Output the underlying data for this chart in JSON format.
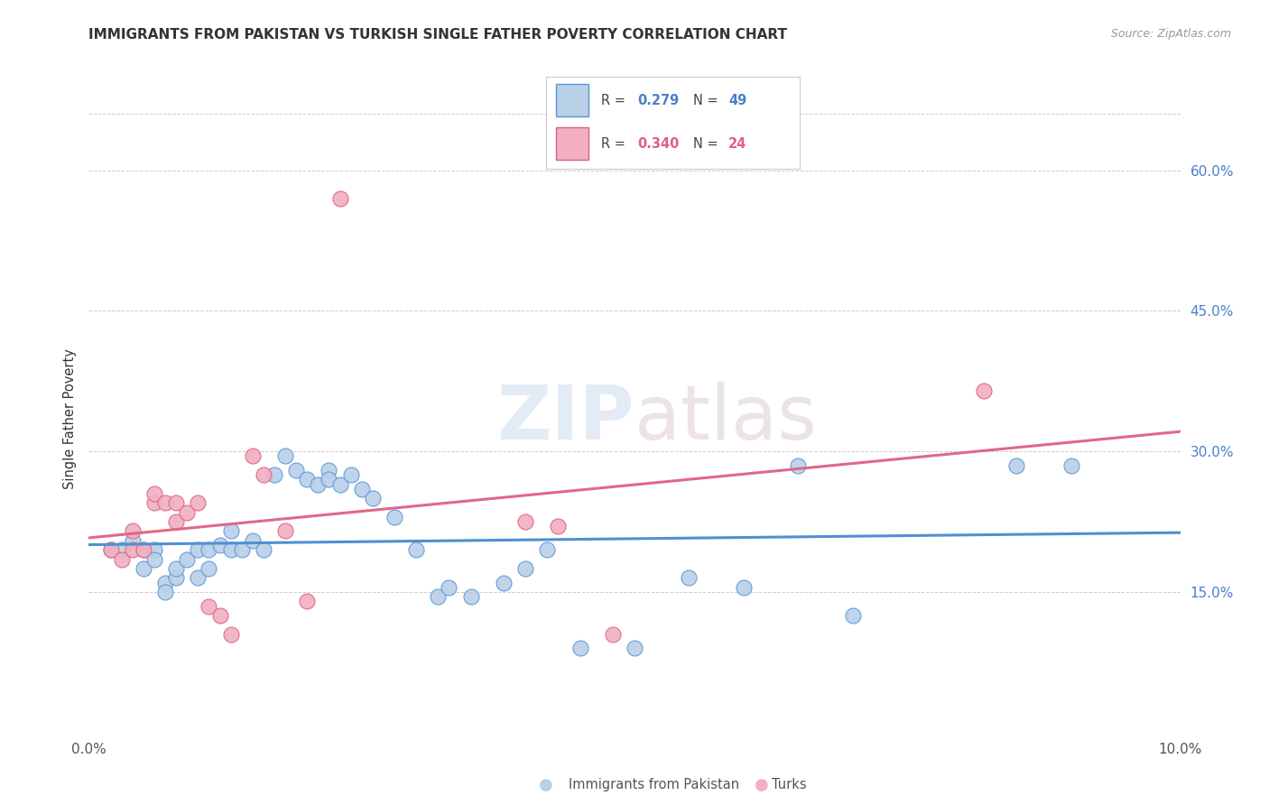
{
  "title": "IMMIGRANTS FROM PAKISTAN VS TURKISH SINGLE FATHER POVERTY CORRELATION CHART",
  "source": "Source: ZipAtlas.com",
  "ylabel": "Single Father Poverty",
  "ytick_labels": [
    "15.0%",
    "30.0%",
    "45.0%",
    "60.0%"
  ],
  "ytick_values": [
    0.15,
    0.3,
    0.45,
    0.6
  ],
  "xlim": [
    0.0,
    0.1
  ],
  "ylim": [
    0.0,
    0.67
  ],
  "legend_r1": "R = 0.279",
  "legend_n1": "N = 49",
  "legend_r2": "R = 0.340",
  "legend_n2": "N = 24",
  "color_blue_fill": "#b8d0e8",
  "color_pink_fill": "#f0b0c0",
  "color_blue_edge": "#5a96d8",
  "color_pink_edge": "#e06080",
  "color_blue_line": "#5090d0",
  "color_pink_line": "#e06888",
  "color_blue_text": "#4a80c8",
  "color_pink_text": "#e06080",
  "color_grid": "#cccccc",
  "watermark_color": "#d0dce8",
  "pakistan_x": [
    0.002,
    0.003,
    0.004,
    0.005,
    0.005,
    0.006,
    0.006,
    0.007,
    0.007,
    0.008,
    0.008,
    0.009,
    0.01,
    0.01,
    0.011,
    0.011,
    0.012,
    0.013,
    0.013,
    0.014,
    0.015,
    0.016,
    0.017,
    0.018,
    0.019,
    0.02,
    0.021,
    0.022,
    0.022,
    0.023,
    0.024,
    0.025,
    0.026,
    0.028,
    0.03,
    0.032,
    0.033,
    0.035,
    0.038,
    0.04,
    0.042,
    0.045,
    0.05,
    0.055,
    0.06,
    0.065,
    0.07,
    0.085,
    0.09
  ],
  "pakistan_y": [
    0.195,
    0.195,
    0.205,
    0.195,
    0.175,
    0.195,
    0.185,
    0.16,
    0.15,
    0.165,
    0.175,
    0.185,
    0.195,
    0.165,
    0.195,
    0.175,
    0.2,
    0.215,
    0.195,
    0.195,
    0.205,
    0.195,
    0.275,
    0.295,
    0.28,
    0.27,
    0.265,
    0.28,
    0.27,
    0.265,
    0.275,
    0.26,
    0.25,
    0.23,
    0.195,
    0.145,
    0.155,
    0.145,
    0.16,
    0.175,
    0.195,
    0.09,
    0.09,
    0.165,
    0.155,
    0.285,
    0.125,
    0.285,
    0.285
  ],
  "turks_x": [
    0.002,
    0.003,
    0.004,
    0.004,
    0.005,
    0.006,
    0.006,
    0.007,
    0.008,
    0.008,
    0.009,
    0.01,
    0.011,
    0.012,
    0.013,
    0.015,
    0.016,
    0.018,
    0.02,
    0.023,
    0.04,
    0.043,
    0.048,
    0.082
  ],
  "turks_y": [
    0.195,
    0.185,
    0.195,
    0.215,
    0.195,
    0.245,
    0.255,
    0.245,
    0.225,
    0.245,
    0.235,
    0.245,
    0.135,
    0.125,
    0.105,
    0.295,
    0.275,
    0.215,
    0.14,
    0.57,
    0.225,
    0.22,
    0.105,
    0.365
  ]
}
